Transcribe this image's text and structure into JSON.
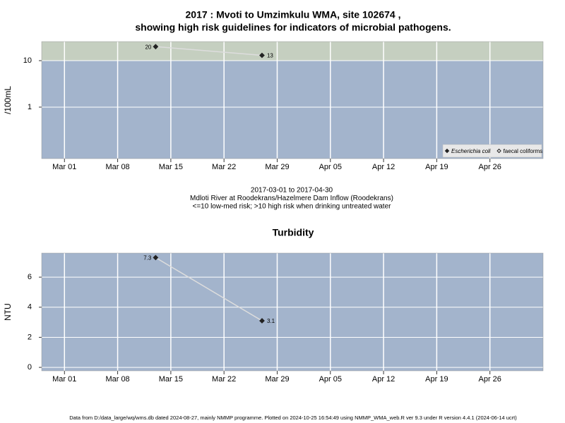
{
  "chart_data": [
    {
      "type": "line",
      "title": [
        "2017 : Mvoti to Umzimkulu WMA, site 102674 ,",
        "showing high risk guidelines for indicators of microbial pathogens."
      ],
      "y_label": "/100mL",
      "log_scale": true,
      "x": [
        "2017-03-13",
        "2017-03-27"
      ],
      "series": [
        {
          "name": "Escherichia coli",
          "color": "#222222",
          "marker": "filled",
          "values": [
            20,
            13
          ]
        },
        {
          "name": "faecal coliforms",
          "color": "#222222",
          "marker": "open",
          "values": [
            null,
            null
          ]
        }
      ],
      "xlim": [
        "2017-02-26",
        "2017-05-03"
      ],
      "xticks": [
        {
          "value": "2017-03-01",
          "label": "Mar 01"
        },
        {
          "value": "2017-03-08",
          "label": "Mar 08"
        },
        {
          "value": "2017-03-15",
          "label": "Mar 15"
        },
        {
          "value": "2017-03-22",
          "label": "Mar 22"
        },
        {
          "value": "2017-03-29",
          "label": "Mar 29"
        },
        {
          "value": "2017-04-05",
          "label": "Apr 05"
        },
        {
          "value": "2017-04-12",
          "label": "Apr 12"
        },
        {
          "value": "2017-04-19",
          "label": "Apr 19"
        },
        {
          "value": "2017-04-26",
          "label": "Apr 26"
        }
      ],
      "ylim": [
        0.078,
        25.7
      ],
      "yticks": [
        1,
        10
      ],
      "threshold": 10,
      "threshold_color": "#c5cfc0",
      "background": "#a3b4cc",
      "line_color": "#dddddd",
      "grid": true,
      "legend": "bottom-right",
      "notes": [
        "2017-03-01 to 2017-04-30",
        "Mdloti River at Roodekrans/Hazelmere Dam Inflow (Roodekrans)",
        "<=10 low-med risk; >10 high risk when drinking untreated water"
      ]
    },
    {
      "type": "line",
      "title": [
        "Turbidity"
      ],
      "y_label": "NTU",
      "log_scale": false,
      "x": [
        "2017-03-13",
        "2017-03-27"
      ],
      "series": [
        {
          "color": "#222222",
          "marker": "filled",
          "values": [
            7.3,
            3.1
          ]
        }
      ],
      "xlim": [
        "2017-02-26",
        "2017-05-03"
      ],
      "xticks": [
        {
          "value": "2017-03-01",
          "label": "Mar 01"
        },
        {
          "value": "2017-03-08",
          "label": "Mar 08"
        },
        {
          "value": "2017-03-15",
          "label": "Mar 15"
        },
        {
          "value": "2017-03-22",
          "label": "Mar 22"
        },
        {
          "value": "2017-03-29",
          "label": "Mar 29"
        },
        {
          "value": "2017-04-05",
          "label": "Apr 05"
        },
        {
          "value": "2017-04-12",
          "label": "Apr 12"
        },
        {
          "value": "2017-04-19",
          "label": "Apr 19"
        },
        {
          "value": "2017-04-26",
          "label": "Apr 26"
        }
      ],
      "ylim": [
        -0.23,
        7.6
      ],
      "yticks": [
        0,
        2,
        4,
        6
      ],
      "background": "#a3b4cc",
      "line_color": "#dddddd",
      "grid": true
    }
  ],
  "footer": "Data from D:/data_large/wq/wms.db dated 2024-08-27, mainly NMMP programme. Plotted on 2024-10-25 16:54:49 using NMMP_WMA_web.R ver 9.3 under R version 4.4.1 (2024-06-14 ucrt)"
}
